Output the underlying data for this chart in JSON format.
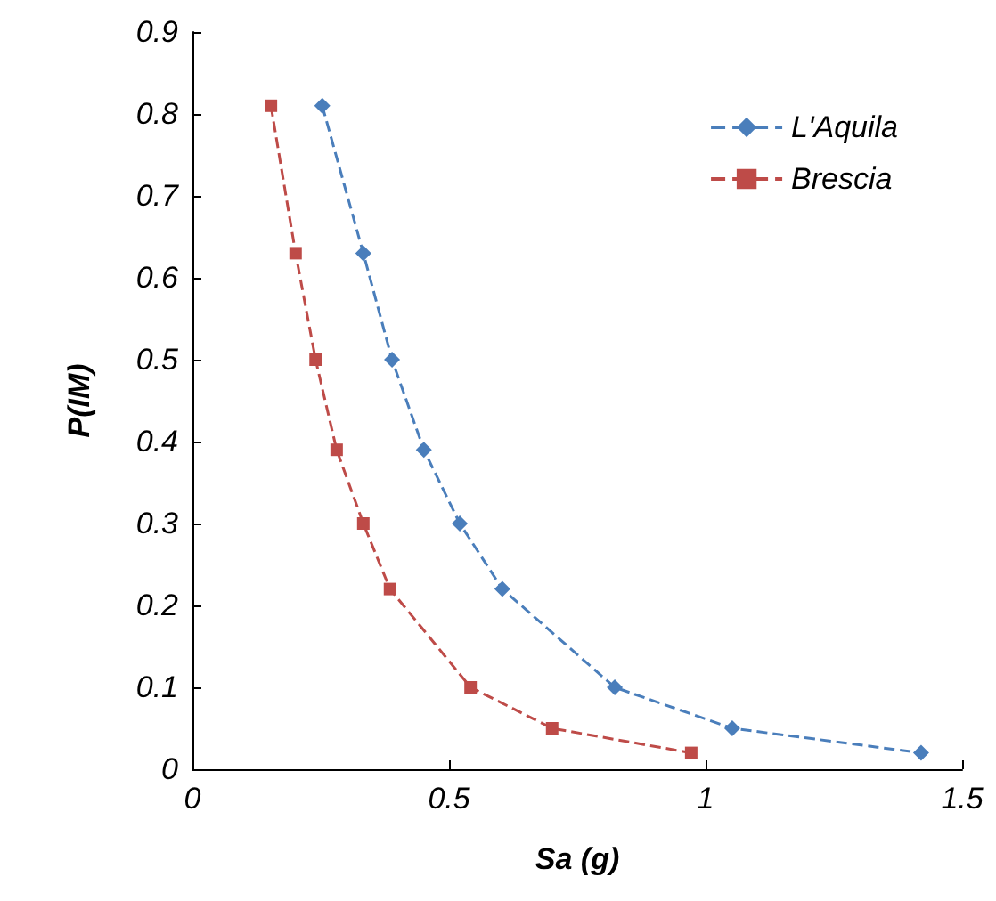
{
  "chart_data": {
    "type": "line",
    "xlabel": "Sa (g)",
    "ylabel": "P(IM)",
    "series": [
      {
        "name": "L'Aquila",
        "color": "#4a7ebb",
        "marker": "diamond",
        "x": [
          0.253,
          0.333,
          0.389,
          0.451,
          0.521,
          0.604,
          0.823,
          1.052,
          1.42
        ],
        "values": [
          0.81,
          0.63,
          0.5,
          0.39,
          0.3,
          0.22,
          0.1,
          0.05,
          0.02
        ]
      },
      {
        "name": "Brescia",
        "color": "#be4b48",
        "marker": "square",
        "x": [
          0.153,
          0.201,
          0.24,
          0.281,
          0.333,
          0.385,
          0.542,
          0.701,
          0.972
        ],
        "values": [
          0.81,
          0.63,
          0.5,
          0.39,
          0.3,
          0.22,
          0.1,
          0.05,
          0.02
        ]
      }
    ],
    "xlim": [
      0,
      1.5
    ],
    "xticks": [
      0,
      0.5,
      1,
      1.5
    ],
    "ylim": [
      0,
      0.9
    ],
    "yticks": [
      0,
      0.1,
      0.2,
      0.3,
      0.4,
      0.5,
      0.6,
      0.7,
      0.8,
      0.9
    ],
    "grid": false,
    "legend": "top right",
    "line_style": "dashed"
  }
}
